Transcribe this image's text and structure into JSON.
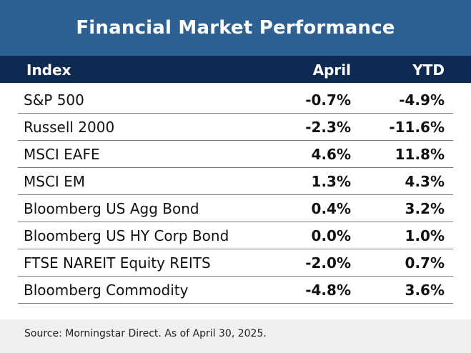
{
  "title": "Financial Market Performance",
  "header": {
    "index": "Index",
    "april": "April",
    "ytd": "YTD"
  },
  "source": "Source: Morningstar Direct. As of April 30, 2025.",
  "colors": {
    "title_bg": "#2e6193",
    "header_bg": "#0f2a52",
    "footer_bg": "#f0f0f0"
  },
  "chart_data": {
    "type": "table",
    "title": "Financial Market Performance",
    "columns": [
      "Index",
      "April",
      "YTD"
    ],
    "rows": [
      {
        "index": "S&P 500",
        "april": "-0.7%",
        "ytd": "-4.9%"
      },
      {
        "index": "Russell 2000",
        "april": "-2.3%",
        "ytd": "-11.6%"
      },
      {
        "index": "MSCI EAFE",
        "april": "4.6%",
        "ytd": "11.8%"
      },
      {
        "index": "MSCI EM",
        "april": "1.3%",
        "ytd": "4.3%"
      },
      {
        "index": "Bloomberg US Agg Bond",
        "april": "0.4%",
        "ytd": "3.2%"
      },
      {
        "index": "Bloomberg US HY Corp Bond",
        "april": "0.0%",
        "ytd": "1.0%"
      },
      {
        "index": "FTSE NAREIT Equity REITS",
        "april": "-2.0%",
        "ytd": "0.7%"
      },
      {
        "index": "Bloomberg Commodity",
        "april": "-4.8%",
        "ytd": "3.6%"
      }
    ]
  }
}
